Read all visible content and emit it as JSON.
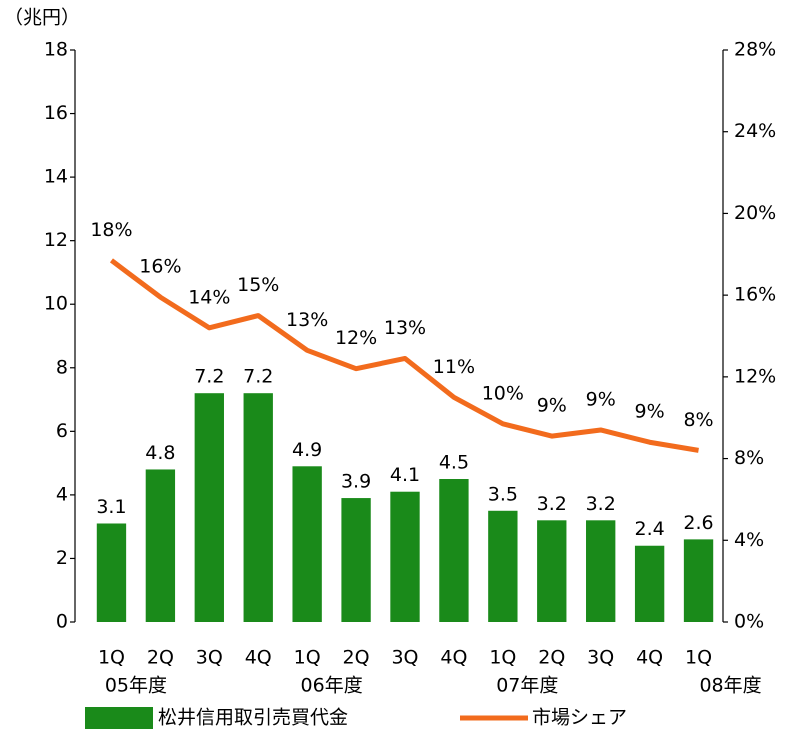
{
  "chart_data": {
    "type": "bar_line",
    "y_unit_label": "（兆円）",
    "categories": [
      "1Q",
      "2Q",
      "3Q",
      "4Q",
      "1Q",
      "2Q",
      "3Q",
      "4Q",
      "1Q",
      "2Q",
      "3Q",
      "4Q",
      "1Q"
    ],
    "category_groups": [
      "05年度",
      "06年度",
      "07年度",
      "08年度"
    ],
    "series": [
      {
        "name": "松井信用取引売買代金",
        "type": "bar",
        "color": "#1a8a1a",
        "axis": "y",
        "values": [
          3.1,
          4.8,
          7.2,
          7.2,
          4.9,
          3.9,
          4.1,
          4.5,
          3.5,
          3.2,
          3.2,
          2.4,
          2.6
        ]
      },
      {
        "name": "市場シェア",
        "type": "line",
        "color": "#f26b1d",
        "axis": "y2",
        "values": [
          17.7,
          15.9,
          14.4,
          15.0,
          13.3,
          12.4,
          12.9,
          11.0,
          9.7,
          9.1,
          9.4,
          8.8,
          8.4
        ],
        "value_labels": [
          "18%",
          "16%",
          "14%",
          "15%",
          "13%",
          "12%",
          "13%",
          "11%",
          "10%",
          "9%",
          "9%",
          "9%",
          "8%"
        ]
      }
    ],
    "ylim": [
      0,
      18
    ],
    "yticks": [
      0,
      2,
      4,
      6,
      8,
      10,
      12,
      14,
      16,
      18
    ],
    "y2lim": [
      0,
      28
    ],
    "y2ticks": [
      {
        "value": 0,
        "label": "0%"
      },
      {
        "value": 4,
        "label": "4%"
      },
      {
        "value": 8,
        "label": "8%"
      },
      {
        "value": 12,
        "label": "12%"
      },
      {
        "value": 16,
        "label": "16%"
      },
      {
        "value": 20,
        "label": "20%"
      },
      {
        "value": 24,
        "label": "24%"
      },
      {
        "value": 28,
        "label": "28%"
      }
    ]
  }
}
